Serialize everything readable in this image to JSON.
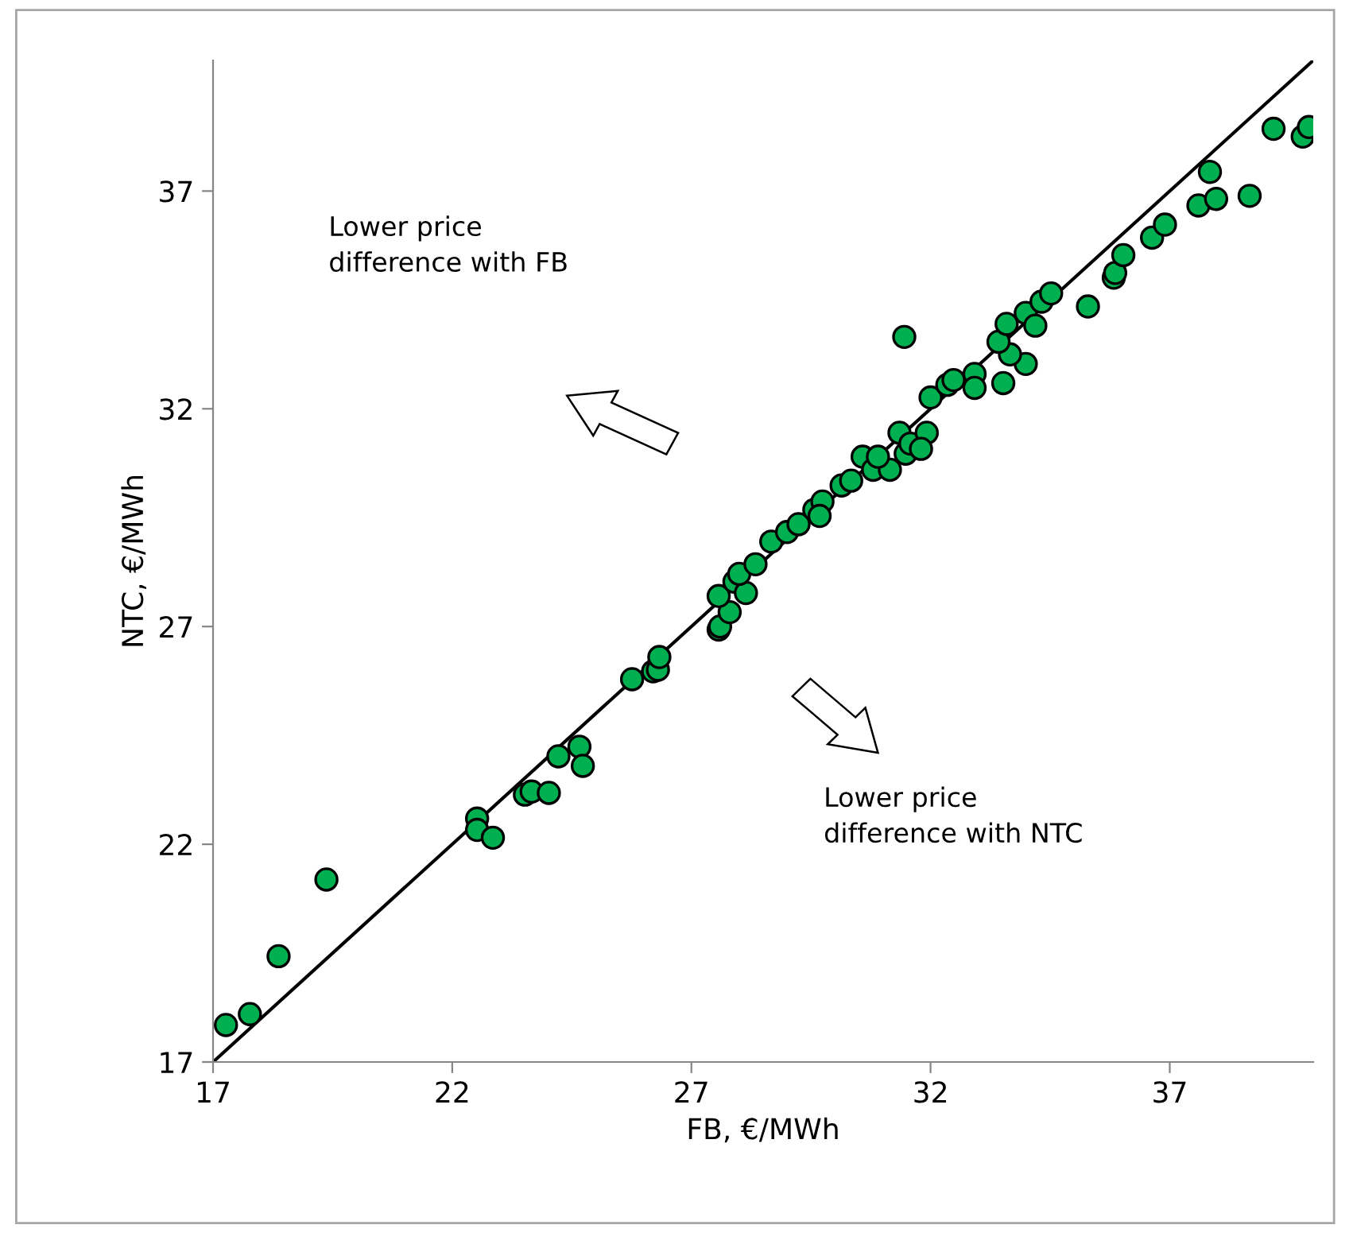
{
  "chart_data": {
    "type": "scatter",
    "xlabel": "FB, €/MWh",
    "ylabel": "NTC, €/MWh",
    "xlim": [
      17,
      40
    ],
    "ylim": [
      17,
      40
    ],
    "xticks": [
      17,
      22,
      27,
      32,
      37
    ],
    "yticks": [
      17,
      22,
      27,
      32,
      37
    ],
    "grid": false,
    "marker": "circle",
    "annotations": [
      "Lower price\ndifference with FB",
      "Lower price\ndifference with NTC"
    ],
    "series": [
      {
        "color": "#00b050",
        "x": [
          17.27,
          17.77,
          18.37,
          19.37,
          22.52,
          22.52,
          22.85,
          23.52,
          23.66,
          24.02,
          24.22,
          24.66,
          24.73,
          25.76,
          26.2,
          26.3,
          26.33,
          27.57,
          27.6,
          27.8,
          27.57,
          27.9,
          28.14,
          28.0,
          28.34,
          28.67,
          29.0,
          29.24,
          29.57,
          29.74,
          29.68,
          30.14,
          30.34,
          30.58,
          30.8,
          31.15,
          30.9,
          31.35,
          31.48,
          31.58,
          31.92,
          31.8,
          32.0,
          32.35,
          32.48,
          32.92,
          32.92,
          33.52,
          33.99,
          31.45,
          33.66,
          33.42,
          33.59,
          33.99,
          34.19,
          34.32,
          34.52,
          35.29,
          35.83,
          35.86,
          36.03,
          36.63,
          36.9,
          37.6,
          37.97,
          37.84,
          38.67,
          39.17,
          39.78,
          39.91
        ],
        "values": [
          17.85,
          18.1,
          19.43,
          21.19,
          22.59,
          22.33,
          22.15,
          23.14,
          23.21,
          23.18,
          24.02,
          24.24,
          23.8,
          25.79,
          25.97,
          26.01,
          26.3,
          26.93,
          27.0,
          27.33,
          27.7,
          28.03,
          27.77,
          28.21,
          28.43,
          28.95,
          29.17,
          29.35,
          29.68,
          29.87,
          29.54,
          30.24,
          30.35,
          30.9,
          30.6,
          30.6,
          30.9,
          31.45,
          30.97,
          31.2,
          31.45,
          31.08,
          32.26,
          32.55,
          32.66,
          32.8,
          32.48,
          32.59,
          33.03,
          33.65,
          33.25,
          33.54,
          33.95,
          34.2,
          33.91,
          34.46,
          34.65,
          34.35,
          35.01,
          35.12,
          35.53,
          35.93,
          36.23,
          36.67,
          36.82,
          37.44,
          36.89,
          38.43,
          38.25,
          38.47
        ]
      },
      {
        "type": "line",
        "color": "#000000",
        "marker": "none",
        "x": [
          17,
          40
        ],
        "values": [
          17,
          40
        ]
      }
    ]
  }
}
